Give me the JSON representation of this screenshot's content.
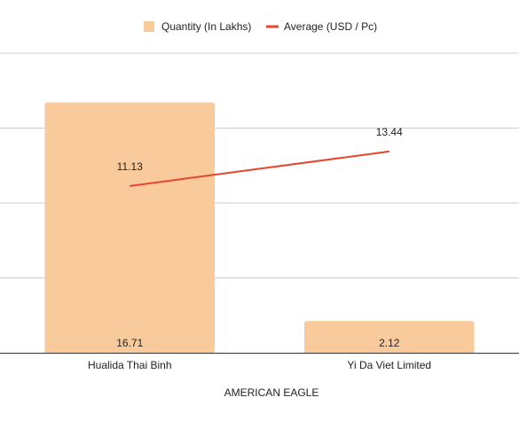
{
  "chart_data": {
    "type": "bar",
    "categories": [
      "Hualida Thai Binh",
      "Yi Da Viet Limited"
    ],
    "series": [
      {
        "name": "Quantity (In Lakhs)",
        "type": "bar",
        "axis": "left",
        "color": "#F9CB9C",
        "values": [
          16.71,
          2.12
        ],
        "labels": [
          "16.71",
          "2.12"
        ]
      },
      {
        "name": "Average (USD / Pc)",
        "type": "line",
        "axis": "right",
        "color": "#E8442E",
        "values": [
          11.13,
          13.44
        ],
        "labels": [
          "11.13",
          "13.44"
        ]
      }
    ],
    "xlabel": "AMERICAN EAGLE",
    "ylim_left": [
      0,
      20
    ],
    "ylim_right": [
      0,
      20
    ],
    "grid": true,
    "legend_position": "top"
  }
}
